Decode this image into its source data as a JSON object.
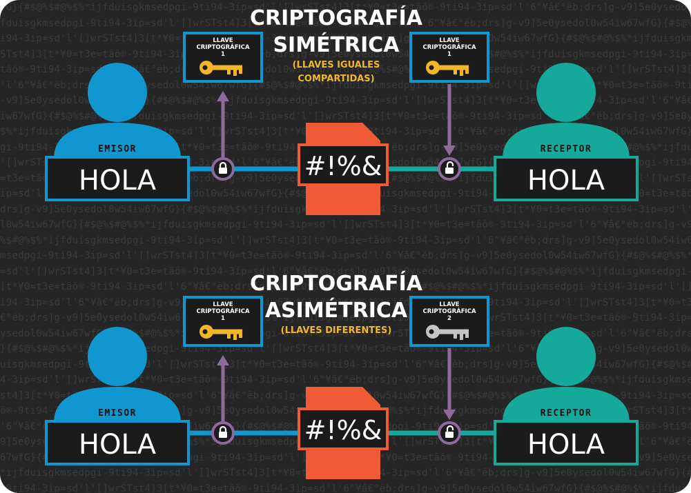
{
  "background_noise": "fG}{#$@%$#@%$%*ijfduisgkmsedpgi-9ti94-3ip=sd'l'[]wrSTst4]3[t*¥0=t3e=tãö®-9ti94-3ip=sd'l'6\"¥â€°ëb;drs]g-v9]5e0ysedol0w54iw67w",
  "palette": {
    "background": "#262626",
    "sender": "#1197cf",
    "receiver": "#14a99a",
    "cipher": "#f05a35",
    "arrow_purple": "#8c6a9c",
    "key_gold": "#f2b728",
    "key_gray": "#c4c4c4",
    "subtitle": "#f2b728"
  },
  "sections": [
    {
      "title_line1": "CRIPTOGRAFÍA",
      "title_line2": "SIMÉTRICA",
      "subtitle_line1": "(LLAVES IGUALES",
      "subtitle_line2": "COMPARTIDAS)",
      "sender_label": "EMISOR",
      "sender_text": "HOLA",
      "cipher_text": "#!%&",
      "receiver_label": "RECEPTOR",
      "receiver_text": "HOLA",
      "key_left": {
        "line1": "LLAVE",
        "line2": "CRIPTOGRÁFICA",
        "line3": "1",
        "color": "#f2b728",
        "icon": "key-icon"
      },
      "key_right": {
        "line1": "LLAVE",
        "line2": "CRIPTOGRÁFICA",
        "line3": "1",
        "color": "#f2b728",
        "icon": "key-icon"
      },
      "lock_icon": "lock-closed-icon",
      "unlock_icon": "lock-open-icon"
    },
    {
      "title_line1": "CRIPTOGRAFÍA",
      "title_line2": "ASIMÉTRICA",
      "subtitle_line1": "(LLAVES DIFERENTES)",
      "subtitle_line2": "",
      "sender_label": "EMISOR",
      "sender_text": "HOLA",
      "cipher_text": "#!%&",
      "receiver_label": "RECEPTOR",
      "receiver_text": "HOLA",
      "key_left": {
        "line1": "LLAVE",
        "line2": "CRIPTOGRÁFICA",
        "line3": "1",
        "color": "#f2b728",
        "icon": "key-icon"
      },
      "key_right": {
        "line1": "LLAVE",
        "line2": "CRIPTOGRÁFICA",
        "line3": "2",
        "color": "#c4c4c4",
        "icon": "key-icon"
      },
      "lock_icon": "lock-closed-icon",
      "unlock_icon": "lock-open-icon"
    }
  ]
}
